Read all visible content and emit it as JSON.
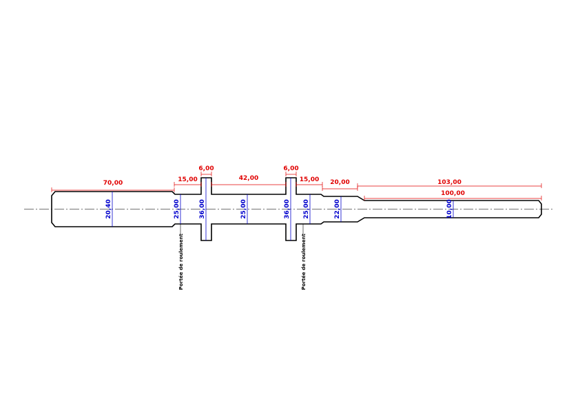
{
  "lengths": [
    "70,00",
    "15,00",
    "6,00",
    "42,00",
    "6,00",
    "15,00",
    "20,00",
    "103,00",
    "100,00"
  ],
  "diameters": [
    "20,40",
    "25,00",
    "36,00",
    "25,00",
    "36,00",
    "25,00",
    "22,00",
    "10,00"
  ],
  "notes": [
    "Portée de roulement",
    "Portée de roulement"
  ]
}
